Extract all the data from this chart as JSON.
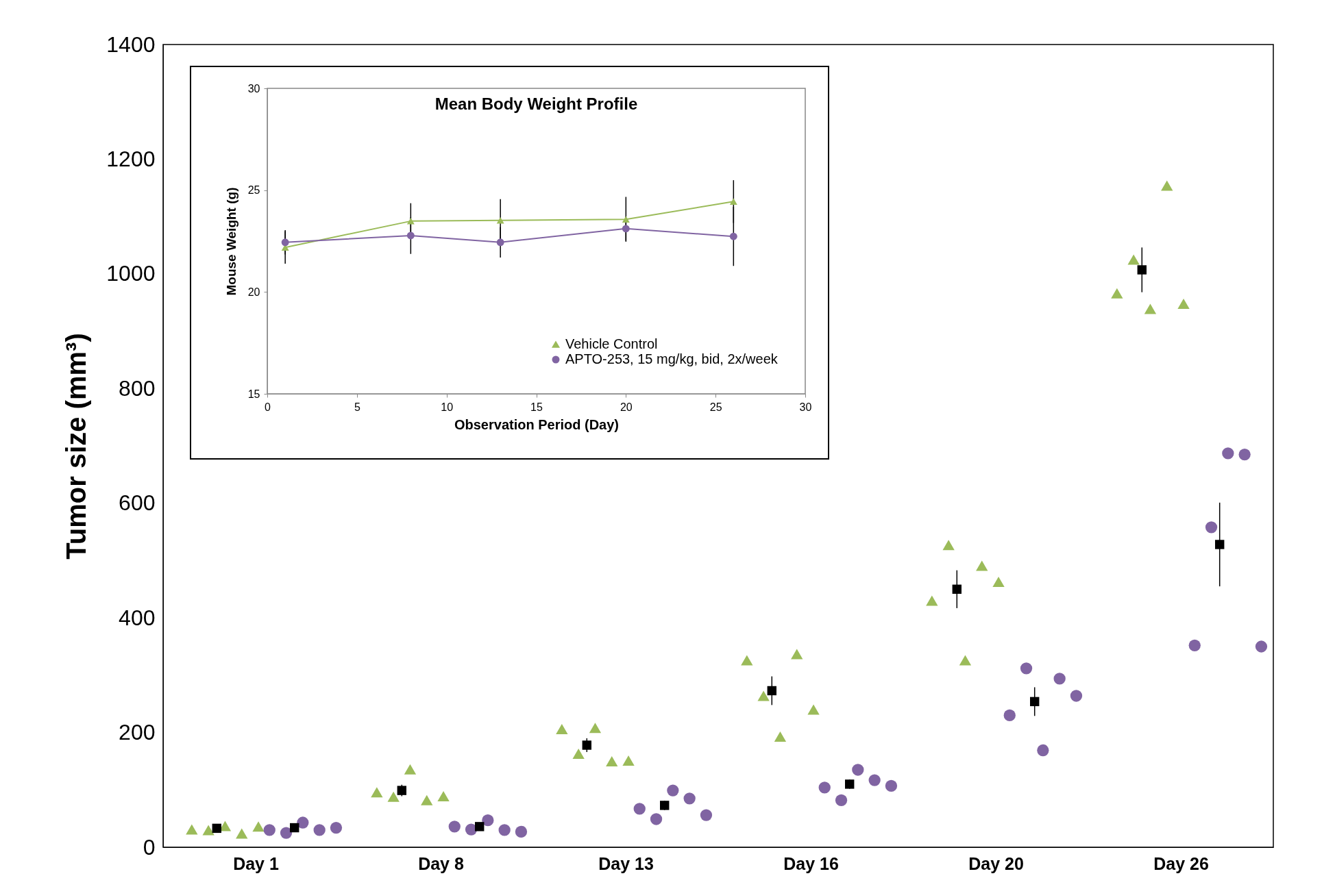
{
  "chart_data": [
    {
      "type": "scatter",
      "ylabel": "Tumor size (mm³)",
      "categories": [
        "Day 1",
        "Day 8",
        "Day 13",
        "Day 16",
        "Day 20",
        "Day 26"
      ],
      "ylim": [
        0,
        1400
      ],
      "yticks": [
        0,
        200,
        400,
        600,
        800,
        1000,
        1200,
        1400
      ],
      "grid": false,
      "legend": false,
      "series": [
        {
          "color": "#9bbb59",
          "marker": "triangle",
          "x": [
            "Day 1",
            "Day 1",
            "Day 1",
            "Day 1",
            "Day 1",
            "Day 8",
            "Day 8",
            "Day 8",
            "Day 8",
            "Day 8",
            "Day 13",
            "Day 13",
            "Day 13",
            "Day 13",
            "Day 13",
            "Day 16",
            "Day 16",
            "Day 16",
            "Day 16",
            "Day 16",
            "Day 20",
            "Day 20",
            "Day 20",
            "Day 20",
            "Day 20",
            "Day 26",
            "Day 26",
            "Day 26",
            "Day 26",
            "Day 26"
          ],
          "values": [
            31,
            30,
            37,
            24,
            36,
            96,
            88,
            136,
            82,
            89,
            206,
            163,
            208,
            150,
            151,
            326,
            264,
            193,
            337,
            240,
            430,
            527,
            326,
            491,
            463,
            966,
            1025,
            939,
            1154,
            948
          ]
        },
        {
          "color": "#8064a2",
          "marker": "circle",
          "x": [
            "Day 1",
            "Day 1",
            "Day 1",
            "Day 1",
            "Day 1",
            "Day 8",
            "Day 8",
            "Day 8",
            "Day 8",
            "Day 8",
            "Day 13",
            "Day 13",
            "Day 13",
            "Day 13",
            "Day 13",
            "Day 16",
            "Day 16",
            "Day 16",
            "Day 16",
            "Day 16",
            "Day 20",
            "Day 20",
            "Day 20",
            "Day 20",
            "Day 20",
            "Day 26",
            "Day 26",
            "Day 26",
            "Day 26",
            "Day 26"
          ],
          "values": [
            30,
            25,
            43,
            30,
            34,
            36,
            31,
            47,
            30,
            27,
            67,
            49,
            99,
            85,
            56,
            104,
            82,
            135,
            117,
            107,
            230,
            312,
            169,
            294,
            264,
            352,
            558,
            687,
            685,
            350
          ]
        },
        {
          "color": "#000000",
          "marker": "square",
          "x": [
            "Day 1",
            "Day 1",
            "Day 8",
            "Day 8",
            "Day 13",
            "Day 13",
            "Day 16",
            "Day 16",
            "Day 20",
            "Day 20",
            "Day 26",
            "Day 26"
          ],
          "values": [
            33,
            34,
            99,
            36,
            178,
            73,
            273,
            110,
            450,
            254,
            1007,
            528
          ],
          "errors": [
            null,
            null,
            10,
            null,
            12,
            8,
            25,
            8,
            33,
            25,
            39,
            73
          ]
        }
      ]
    },
    {
      "type": "line",
      "title": "Mean Body Weight Profile",
      "xlabel": "Observation Period (Day)",
      "ylabel": "Mouse Weight (g)",
      "xlim": [
        0,
        30
      ],
      "xticks": [
        0,
        5,
        10,
        15,
        20,
        25,
        30
      ],
      "ylim": [
        15,
        30
      ],
      "yticks": [
        15,
        20,
        25,
        30
      ],
      "grid": false,
      "legend": "bottom right",
      "series": [
        {
          "name": "Vehicle Control",
          "color": "#9bbb59",
          "marker": "triangle",
          "x": [
            1,
            8,
            13,
            20,
            26
          ],
          "values": [
            22.19,
            23.48,
            23.52,
            23.57,
            24.44
          ],
          "errors": [
            0.8,
            0.88,
            1.04,
            1.1,
            1.05
          ]
        },
        {
          "name": "APTO-253, 15 mg/kg, bid, 2x/week",
          "color": "#8064a2",
          "marker": "circle",
          "x": [
            1,
            8,
            13,
            20,
            26
          ],
          "values": [
            22.44,
            22.77,
            22.44,
            23.11,
            22.73
          ],
          "errors": [
            0.6,
            0.9,
            0.75,
            0.6,
            1.45
          ]
        }
      ]
    }
  ]
}
